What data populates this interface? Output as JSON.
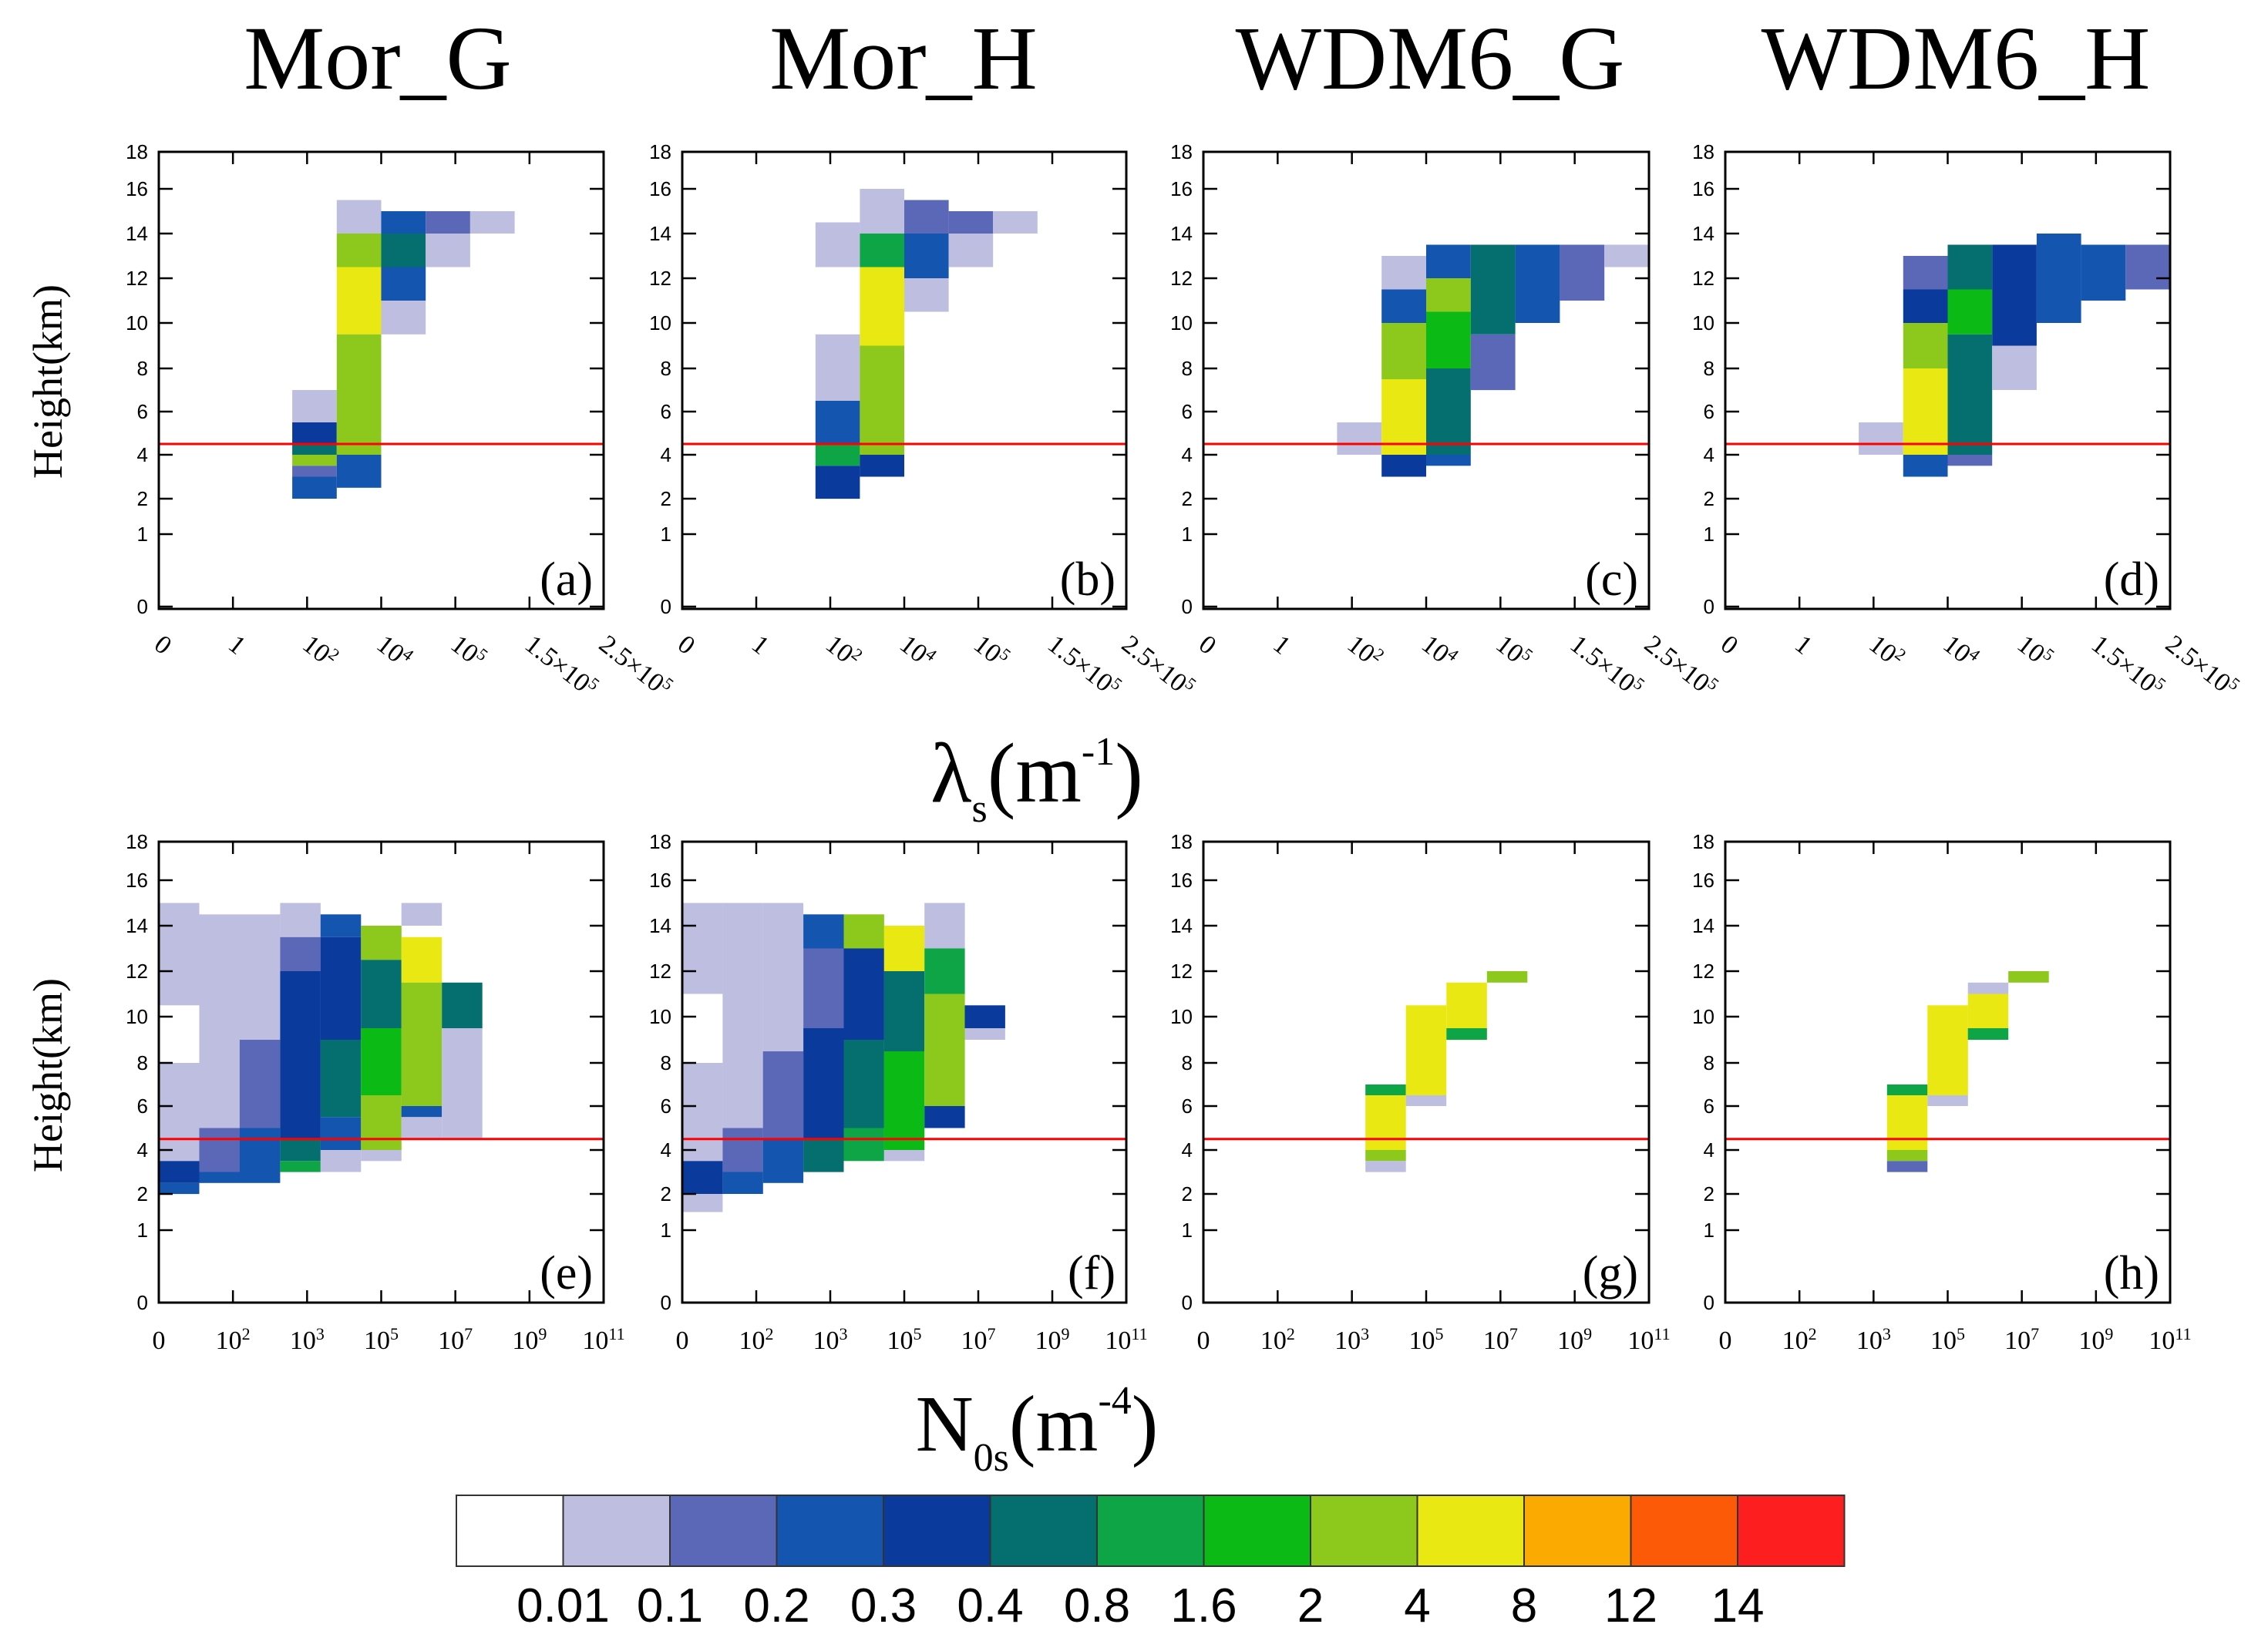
{
  "chart_data": {
    "type": "heatmap",
    "column_titles": [
      "Mor_G",
      "Mor_H",
      "WDM6_G",
      "WDM6_H"
    ],
    "y_axis": {
      "label": "Height(km)",
      "tick_labels": [
        "0",
        "1",
        "2",
        "4",
        "6",
        "8",
        "10",
        "12",
        "14",
        "16",
        "18"
      ],
      "tick_values": [
        0,
        1,
        2,
        4,
        6,
        8,
        10,
        12,
        14,
        16,
        18
      ]
    },
    "reference_line_km": 4.5,
    "reference_line_color": "#ff0000",
    "row1_xaxis": {
      "label_main": "λ",
      "label_sub": "s",
      "label_unit": "(m",
      "label_sup": "-1",
      "label_close": ")",
      "bins": [
        "0",
        "1",
        "10^2",
        "10^4",
        "10^5",
        "1.5×10^5",
        "2.5×10^5"
      ]
    },
    "row2_xaxis": {
      "label_main": "N",
      "label_sub": "0s",
      "label_unit": "(m",
      "label_sup": "-4",
      "label_close": ")",
      "bins": [
        "0",
        "10^2",
        "10^3",
        "10^5",
        "10^7",
        "10^9",
        "10^11"
      ]
    },
    "panels": [
      {
        "label": "(a)",
        "title": "Mor_G",
        "xvar": "lambda_s",
        "cells": [
          [
            3,
            5.5,
            7,
            1
          ],
          [
            3,
            4.5,
            5.5,
            4
          ],
          [
            3,
            4,
            4.5,
            5
          ],
          [
            3,
            3.5,
            4,
            8
          ],
          [
            3,
            3,
            3.5,
            2
          ],
          [
            3,
            2,
            3,
            3
          ],
          [
            4,
            14,
            15.5,
            1
          ],
          [
            4,
            12.5,
            14,
            8
          ],
          [
            4,
            9.5,
            12.5,
            9
          ],
          [
            4,
            4,
            9.5,
            8
          ],
          [
            4,
            2.5,
            4,
            3
          ],
          [
            5,
            14,
            15,
            3
          ],
          [
            5,
            12.5,
            14,
            5
          ],
          [
            5,
            11,
            12.5,
            3
          ],
          [
            5,
            9.5,
            11,
            1
          ],
          [
            6,
            14,
            15,
            2
          ],
          [
            6,
            12.5,
            14,
            1
          ],
          [
            7,
            14,
            15,
            1
          ]
        ]
      },
      {
        "label": "(b)",
        "title": "Mor_H",
        "xvar": "lambda_s",
        "cells": [
          [
            3,
            12.5,
            14.5,
            1
          ],
          [
            3,
            6.5,
            9.5,
            1
          ],
          [
            3,
            4.5,
            6.5,
            3
          ],
          [
            3,
            3.5,
            4.5,
            6
          ],
          [
            3,
            2,
            3.5,
            4
          ],
          [
            4,
            14,
            16,
            1
          ],
          [
            4,
            12.5,
            14,
            6
          ],
          [
            4,
            9,
            12.5,
            9
          ],
          [
            4,
            4,
            9,
            8
          ],
          [
            4,
            3,
            4,
            4
          ],
          [
            5,
            14,
            15.5,
            2
          ],
          [
            5,
            12,
            14,
            3
          ],
          [
            5,
            10.5,
            12,
            1
          ],
          [
            6,
            14,
            15,
            2
          ],
          [
            6,
            12.5,
            14,
            1
          ],
          [
            7,
            14,
            15,
            1
          ]
        ]
      },
      {
        "label": "(c)",
        "title": "WDM6_G",
        "xvar": "lambda_s",
        "cells": [
          [
            3,
            4,
            5.5,
            1
          ],
          [
            4,
            11.5,
            13,
            1
          ],
          [
            4,
            10,
            11.5,
            3
          ],
          [
            4,
            7.5,
            10,
            8
          ],
          [
            4,
            4,
            7.5,
            9
          ],
          [
            4,
            3,
            4,
            4
          ],
          [
            5,
            12,
            13.5,
            3
          ],
          [
            5,
            10.5,
            12,
            8
          ],
          [
            5,
            8,
            10.5,
            7
          ],
          [
            5,
            4,
            8,
            5
          ],
          [
            5,
            3.5,
            4,
            3
          ],
          [
            6,
            9.5,
            13.5,
            5
          ],
          [
            6,
            7,
            9.5,
            2
          ],
          [
            7,
            10,
            13.5,
            3
          ],
          [
            8,
            11,
            13.5,
            2
          ],
          [
            9,
            12.5,
            13.5,
            1
          ]
        ]
      },
      {
        "label": "(d)",
        "title": "WDM6_H",
        "xvar": "lambda_s",
        "cells": [
          [
            3,
            4,
            5.5,
            1
          ],
          [
            4,
            11.5,
            13,
            2
          ],
          [
            4,
            10,
            11.5,
            4
          ],
          [
            4,
            8,
            10,
            8
          ],
          [
            4,
            4,
            8,
            9
          ],
          [
            4,
            3,
            4,
            3
          ],
          [
            5,
            11.5,
            13.5,
            5
          ],
          [
            5,
            9.5,
            11.5,
            7
          ],
          [
            5,
            4,
            9.5,
            5
          ],
          [
            5,
            3.5,
            4,
            2
          ],
          [
            6,
            9,
            13.5,
            4
          ],
          [
            6,
            7,
            9,
            1
          ],
          [
            7,
            10,
            14,
            3
          ],
          [
            8,
            11,
            13.5,
            3
          ],
          [
            9,
            11.5,
            13.5,
            2
          ]
        ]
      },
      {
        "label": "(e)",
        "title": "Mor_G",
        "xvar": "N0s",
        "cells": [
          [
            0,
            10.5,
            15,
            1
          ],
          [
            0,
            3.5,
            8,
            1
          ],
          [
            0,
            2.5,
            3.5,
            4
          ],
          [
            0,
            2,
            2.5,
            3
          ],
          [
            1,
            5,
            14.5,
            1
          ],
          [
            1,
            3,
            5,
            2
          ],
          [
            1,
            2.5,
            3,
            3
          ],
          [
            2,
            9,
            14.5,
            1
          ],
          [
            2,
            5,
            9,
            2
          ],
          [
            2,
            2.5,
            5,
            3
          ],
          [
            3,
            13.5,
            15,
            1
          ],
          [
            3,
            12,
            13.5,
            2
          ],
          [
            3,
            9.5,
            12,
            4
          ],
          [
            3,
            4.5,
            9.5,
            4
          ],
          [
            3,
            3.5,
            4.5,
            5
          ],
          [
            3,
            3,
            3.5,
            6
          ],
          [
            4,
            13.5,
            14.5,
            3
          ],
          [
            4,
            9,
            13.5,
            4
          ],
          [
            4,
            5.5,
            9,
            5
          ],
          [
            4,
            4,
            5.5,
            3
          ],
          [
            4,
            3,
            4,
            1
          ],
          [
            5,
            12.5,
            14,
            8
          ],
          [
            5,
            9.5,
            12.5,
            5
          ],
          [
            5,
            6.5,
            9.5,
            7
          ],
          [
            5,
            4,
            6.5,
            8
          ],
          [
            5,
            3.5,
            4,
            1
          ],
          [
            6,
            14,
            15,
            1
          ],
          [
            6,
            11.5,
            13.5,
            9
          ],
          [
            6,
            6,
            11.5,
            8
          ],
          [
            6,
            5.5,
            6,
            3
          ],
          [
            6,
            4.5,
            5.5,
            1
          ],
          [
            7,
            9.5,
            11.5,
            5
          ],
          [
            7,
            4.5,
            9.5,
            1
          ]
        ]
      },
      {
        "label": "(f)",
        "title": "Mor_H",
        "xvar": "N0s",
        "cells": [
          [
            0,
            11,
            15,
            1
          ],
          [
            0,
            3.5,
            8,
            1
          ],
          [
            0,
            2,
            3.5,
            4
          ],
          [
            0,
            1.5,
            2,
            1
          ],
          [
            1,
            5,
            15,
            1
          ],
          [
            1,
            3,
            5,
            2
          ],
          [
            1,
            2,
            3,
            3
          ],
          [
            2,
            8.5,
            15,
            1
          ],
          [
            2,
            4.5,
            8.5,
            2
          ],
          [
            2,
            2.5,
            4.5,
            3
          ],
          [
            3,
            13,
            14.5,
            3
          ],
          [
            3,
            9.5,
            13,
            2
          ],
          [
            3,
            4.5,
            9.5,
            4
          ],
          [
            3,
            3,
            4.5,
            5
          ],
          [
            4,
            13,
            14.5,
            8
          ],
          [
            4,
            9,
            13,
            4
          ],
          [
            4,
            5,
            9,
            5
          ],
          [
            4,
            3.5,
            5,
            6
          ],
          [
            5,
            12,
            14,
            9
          ],
          [
            5,
            8.5,
            12,
            5
          ],
          [
            5,
            4,
            8.5,
            7
          ],
          [
            5,
            3.5,
            4,
            1
          ],
          [
            6,
            13,
            15,
            1
          ],
          [
            6,
            11,
            13,
            6
          ],
          [
            6,
            6,
            11,
            8
          ],
          [
            6,
            5,
            6,
            4
          ],
          [
            7,
            9.5,
            10.5,
            4
          ],
          [
            7,
            9,
            9.5,
            1
          ]
        ]
      },
      {
        "label": "(g)",
        "title": "WDM6_G",
        "xvar": "N0s",
        "cells": [
          [
            4,
            6.5,
            7,
            6
          ],
          [
            4,
            4,
            6.5,
            9
          ],
          [
            4,
            3.5,
            4,
            8
          ],
          [
            4,
            3,
            3.5,
            1
          ],
          [
            5,
            9.5,
            10.5,
            9
          ],
          [
            5,
            6.5,
            9.5,
            9
          ],
          [
            5,
            6,
            6.5,
            1
          ],
          [
            6,
            9,
            11.5,
            9
          ],
          [
            6,
            9,
            9.5,
            6
          ],
          [
            7,
            11.5,
            12,
            8
          ]
        ]
      },
      {
        "label": "(h)",
        "title": "WDM6_H",
        "xvar": "N0s",
        "cells": [
          [
            4,
            6.5,
            7,
            6
          ],
          [
            4,
            4,
            6.5,
            9
          ],
          [
            4,
            3.5,
            4,
            8
          ],
          [
            4,
            3,
            3.5,
            2
          ],
          [
            5,
            9.5,
            10.5,
            9
          ],
          [
            5,
            6.5,
            9.5,
            9
          ],
          [
            5,
            6,
            6.5,
            1
          ],
          [
            6,
            11,
            11.5,
            1
          ],
          [
            6,
            9.5,
            11,
            9
          ],
          [
            6,
            9,
            9.5,
            6
          ],
          [
            7,
            11.5,
            12,
            8
          ]
        ]
      }
    ],
    "colorbar": {
      "labels": [
        "0.01",
        "0.1",
        "0.2",
        "0.3",
        "0.4",
        "0.8",
        "1.6",
        "2",
        "4",
        "8",
        "12",
        "14"
      ],
      "colors": [
        "#ffffff",
        "#bebee0",
        "#5b68b8",
        "#1455b0",
        "#0a3a9c",
        "#056e6e",
        "#0ea546",
        "#0cba15",
        "#8dc81d",
        "#e9e813",
        "#faaa00",
        "#fd5a08",
        "#fd1f1f"
      ]
    }
  }
}
